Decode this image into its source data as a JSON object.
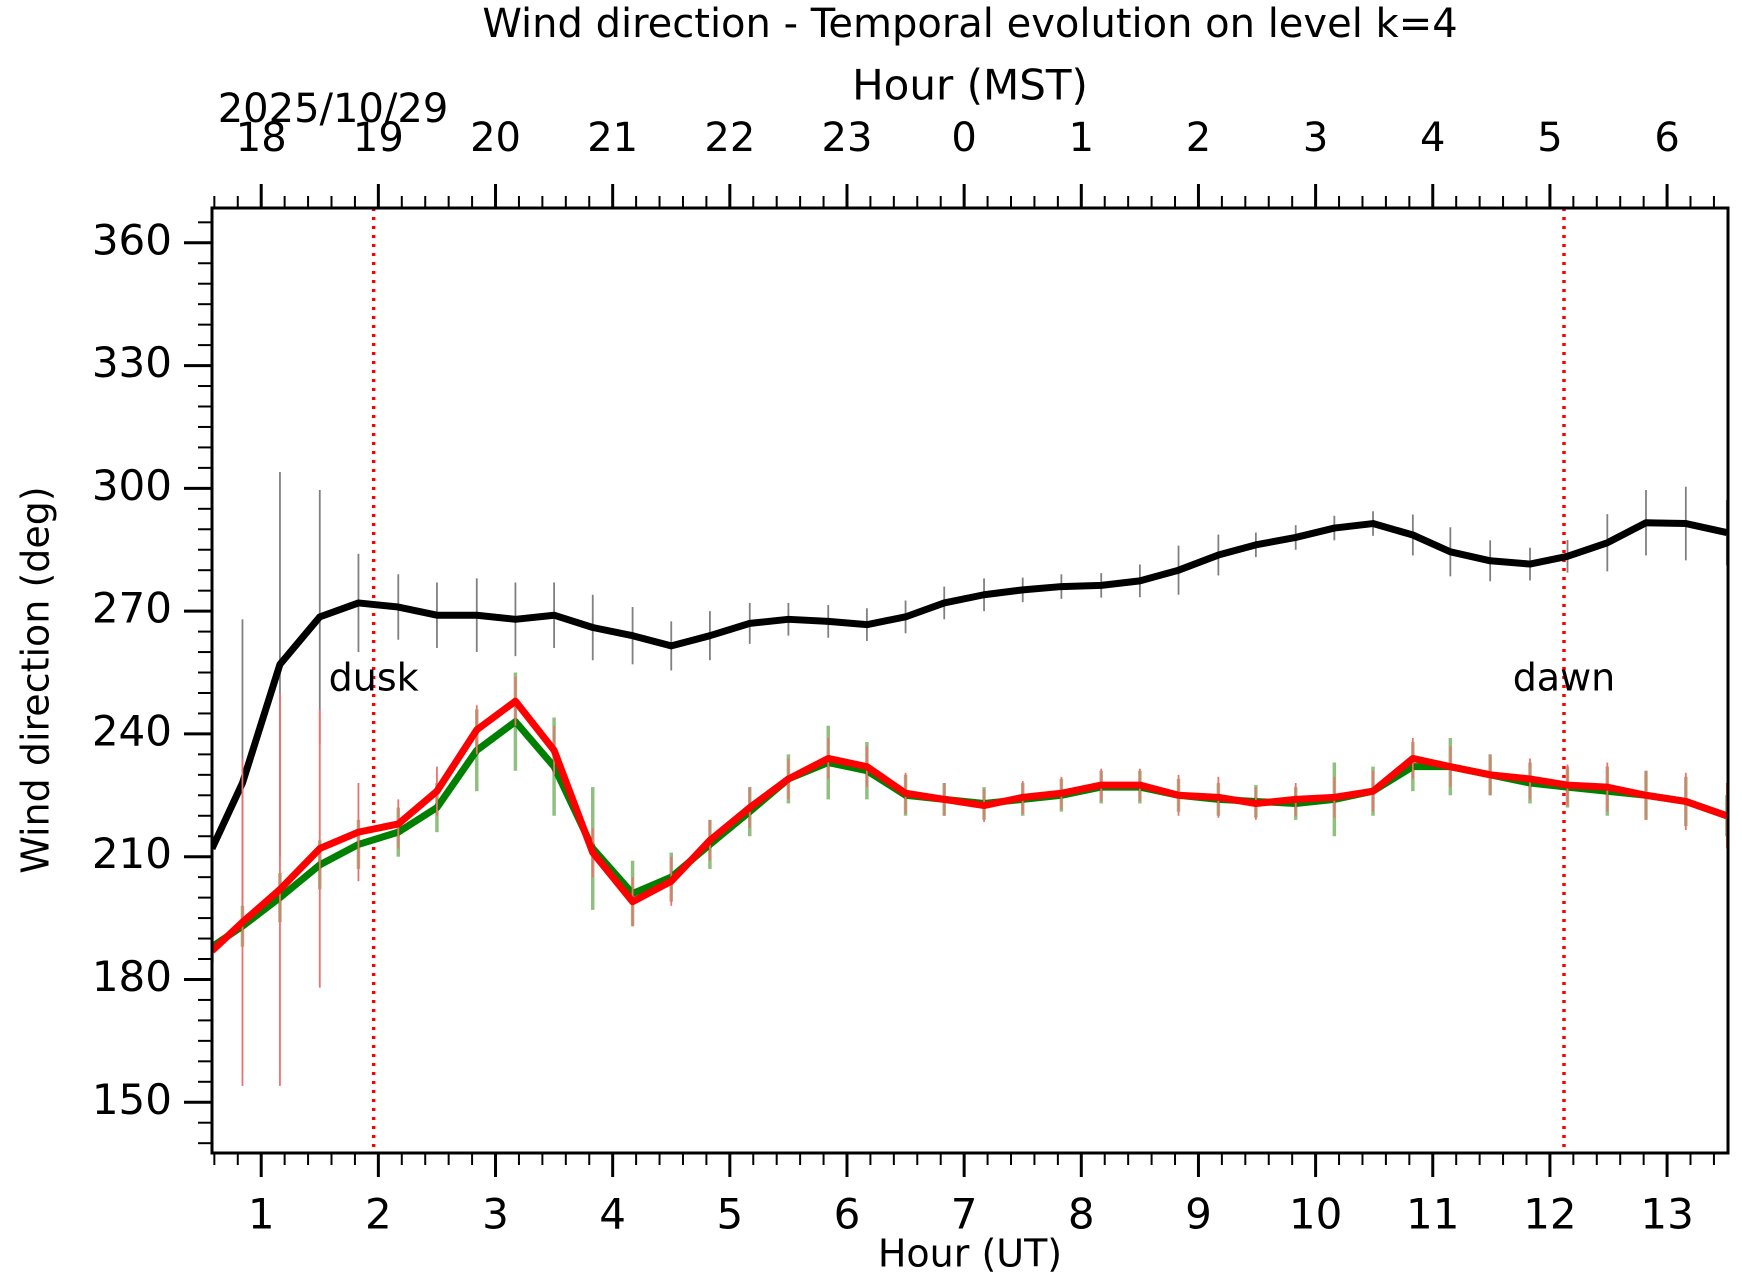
{
  "chart_data": {
    "type": "line",
    "title": "Wind direction - Temporal evolution on level k=4",
    "x2label": "Hour (MST)",
    "date_label": "2025/10/29",
    "xlabel": "Hour (UT)",
    "ylabel": "Wind direction (deg)",
    "xlim": [
      0.58,
      13.52
    ],
    "ylim": [
      137.6,
      368.5
    ],
    "xticks": [
      1,
      2,
      3,
      4,
      5,
      6,
      7,
      8,
      9,
      10,
      11,
      12,
      13
    ],
    "yticks": [
      150,
      180,
      210,
      240,
      270,
      300,
      330,
      360
    ],
    "x2ticks": [
      {
        "value": 1,
        "label": "18"
      },
      {
        "value": 2,
        "label": "19"
      },
      {
        "value": 3,
        "label": "20"
      },
      {
        "value": 4,
        "label": "21"
      },
      {
        "value": 5,
        "label": "22"
      },
      {
        "value": 6,
        "label": "23"
      },
      {
        "value": 7,
        "label": "0"
      },
      {
        "value": 8,
        "label": "1"
      },
      {
        "value": 9,
        "label": "2"
      },
      {
        "value": 10,
        "label": "3"
      },
      {
        "value": 11,
        "label": "4"
      },
      {
        "value": 12,
        "label": "5"
      },
      {
        "value": 13,
        "label": "6"
      }
    ],
    "minor_ticks": {
      "x": 0.2,
      "y": 5
    },
    "vlines": [
      {
        "x": 1.96,
        "label": "dusk",
        "color": "#ff0000"
      },
      {
        "x": 12.12,
        "label": "dawn",
        "color": "#ff0000"
      }
    ],
    "x": [
      0.58,
      0.84,
      1.16,
      1.5,
      1.83,
      2.17,
      2.5,
      2.84,
      3.17,
      3.5,
      3.83,
      4.17,
      4.5,
      4.83,
      5.17,
      5.5,
      5.84,
      6.17,
      6.5,
      6.83,
      7.17,
      7.5,
      7.83,
      8.17,
      8.5,
      8.83,
      9.17,
      9.49,
      9.83,
      10.16,
      10.49,
      10.83,
      11.15,
      11.49,
      11.83,
      12.15,
      12.49,
      12.82,
      13.16,
      13.51
    ],
    "series": [
      {
        "color": "#000000",
        "error_color": "#808080",
        "values": [
          212,
          228,
          257,
          268.6,
          272,
          271,
          269,
          269,
          268,
          269,
          266,
          264,
          261.5,
          264,
          267,
          268,
          267.5,
          266.7,
          268.6,
          272,
          274,
          275.2,
          276,
          276.3,
          277.4,
          280,
          283.7,
          286.2,
          288,
          290.3,
          291.4,
          288.6,
          284.5,
          282.3,
          281.5,
          283.4,
          286.7,
          291.6,
          291.4,
          289.2
        ],
        "errors": [
          0,
          40,
          47,
          31,
          12,
          8,
          8,
          9,
          9,
          8,
          8,
          7,
          6,
          6,
          5,
          4,
          4,
          4,
          4,
          4,
          4,
          3,
          3,
          3,
          4,
          6,
          5,
          3,
          3,
          3,
          3,
          5,
          6,
          5,
          4,
          4,
          7,
          8,
          9,
          8
        ]
      },
      {
        "color": "#008000",
        "error_color": "#90c080",
        "values": [
          188,
          193,
          200,
          208,
          213,
          216,
          222,
          236,
          243,
          232,
          212,
          201,
          205,
          213,
          221,
          229,
          233,
          231,
          225,
          224,
          223,
          224,
          225,
          227,
          227,
          225,
          224,
          223.5,
          223,
          224,
          226,
          232,
          232,
          230,
          228,
          227,
          226,
          225,
          223.5,
          220
        ],
        "errors": [
          4,
          5,
          6,
          6,
          6,
          6,
          6,
          10,
          12,
          12,
          15,
          8,
          6,
          6,
          6,
          6,
          9,
          7,
          5,
          4,
          4,
          4,
          4,
          4,
          4,
          4,
          4,
          4,
          4,
          9,
          6,
          6,
          7,
          5,
          5,
          5,
          6,
          6,
          6,
          5
        ]
      },
      {
        "color": "#ff0000",
        "error_color": "#f07070",
        "values": [
          187,
          194,
          202,
          212,
          216,
          218,
          226,
          241,
          248,
          236,
          211,
          199,
          204,
          214,
          222,
          229,
          234,
          232,
          225.5,
          224,
          222.5,
          224.5,
          225.5,
          227.5,
          227.5,
          225,
          224.5,
          223,
          224,
          224.5,
          226,
          234,
          232,
          230,
          229,
          227.5,
          227,
          225,
          223.5,
          220
        ],
        "errors": [
          4,
          40,
          48,
          34,
          12,
          6,
          6,
          6,
          6,
          6,
          6,
          6,
          6,
          5,
          5,
          5,
          5,
          5,
          5,
          4,
          4,
          4,
          4,
          4,
          4,
          5,
          5,
          4,
          4,
          5,
          5,
          5,
          5,
          5,
          5,
          5,
          6,
          6,
          7,
          8
        ]
      }
    ]
  }
}
